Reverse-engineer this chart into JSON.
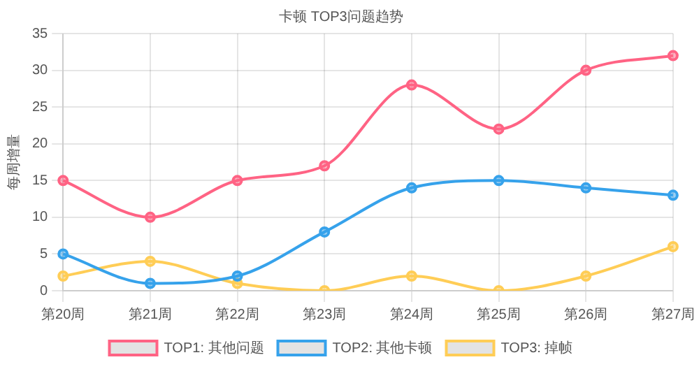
{
  "chart_data": {
    "type": "line",
    "title": "卡顿 TOP3问题趋势",
    "ylabel": "每周增量",
    "categories": [
      "第20周",
      "第21周",
      "第22周",
      "第23周",
      "第24周",
      "第25周",
      "第26周",
      "第27周"
    ],
    "series": [
      {
        "name": "TOP1: 其他问题",
        "color": "#ff6384",
        "values": [
          15,
          10,
          15,
          17,
          28,
          22,
          30,
          32
        ]
      },
      {
        "name": "TOP2: 其他卡顿",
        "color": "#36a2eb",
        "values": [
          5,
          1,
          2,
          8,
          14,
          15,
          14,
          13
        ]
      },
      {
        "name": "TOP3: 掉帧",
        "color": "#ffcd56",
        "values": [
          2,
          4,
          1,
          0,
          2,
          0,
          2,
          6
        ]
      }
    ],
    "ylim": [
      0,
      35
    ],
    "yticks": [
      0,
      5,
      10,
      15,
      20,
      25,
      30,
      35
    ],
    "grid": true,
    "legend": "bottom",
    "marker": "circle",
    "line_style": "solid"
  }
}
